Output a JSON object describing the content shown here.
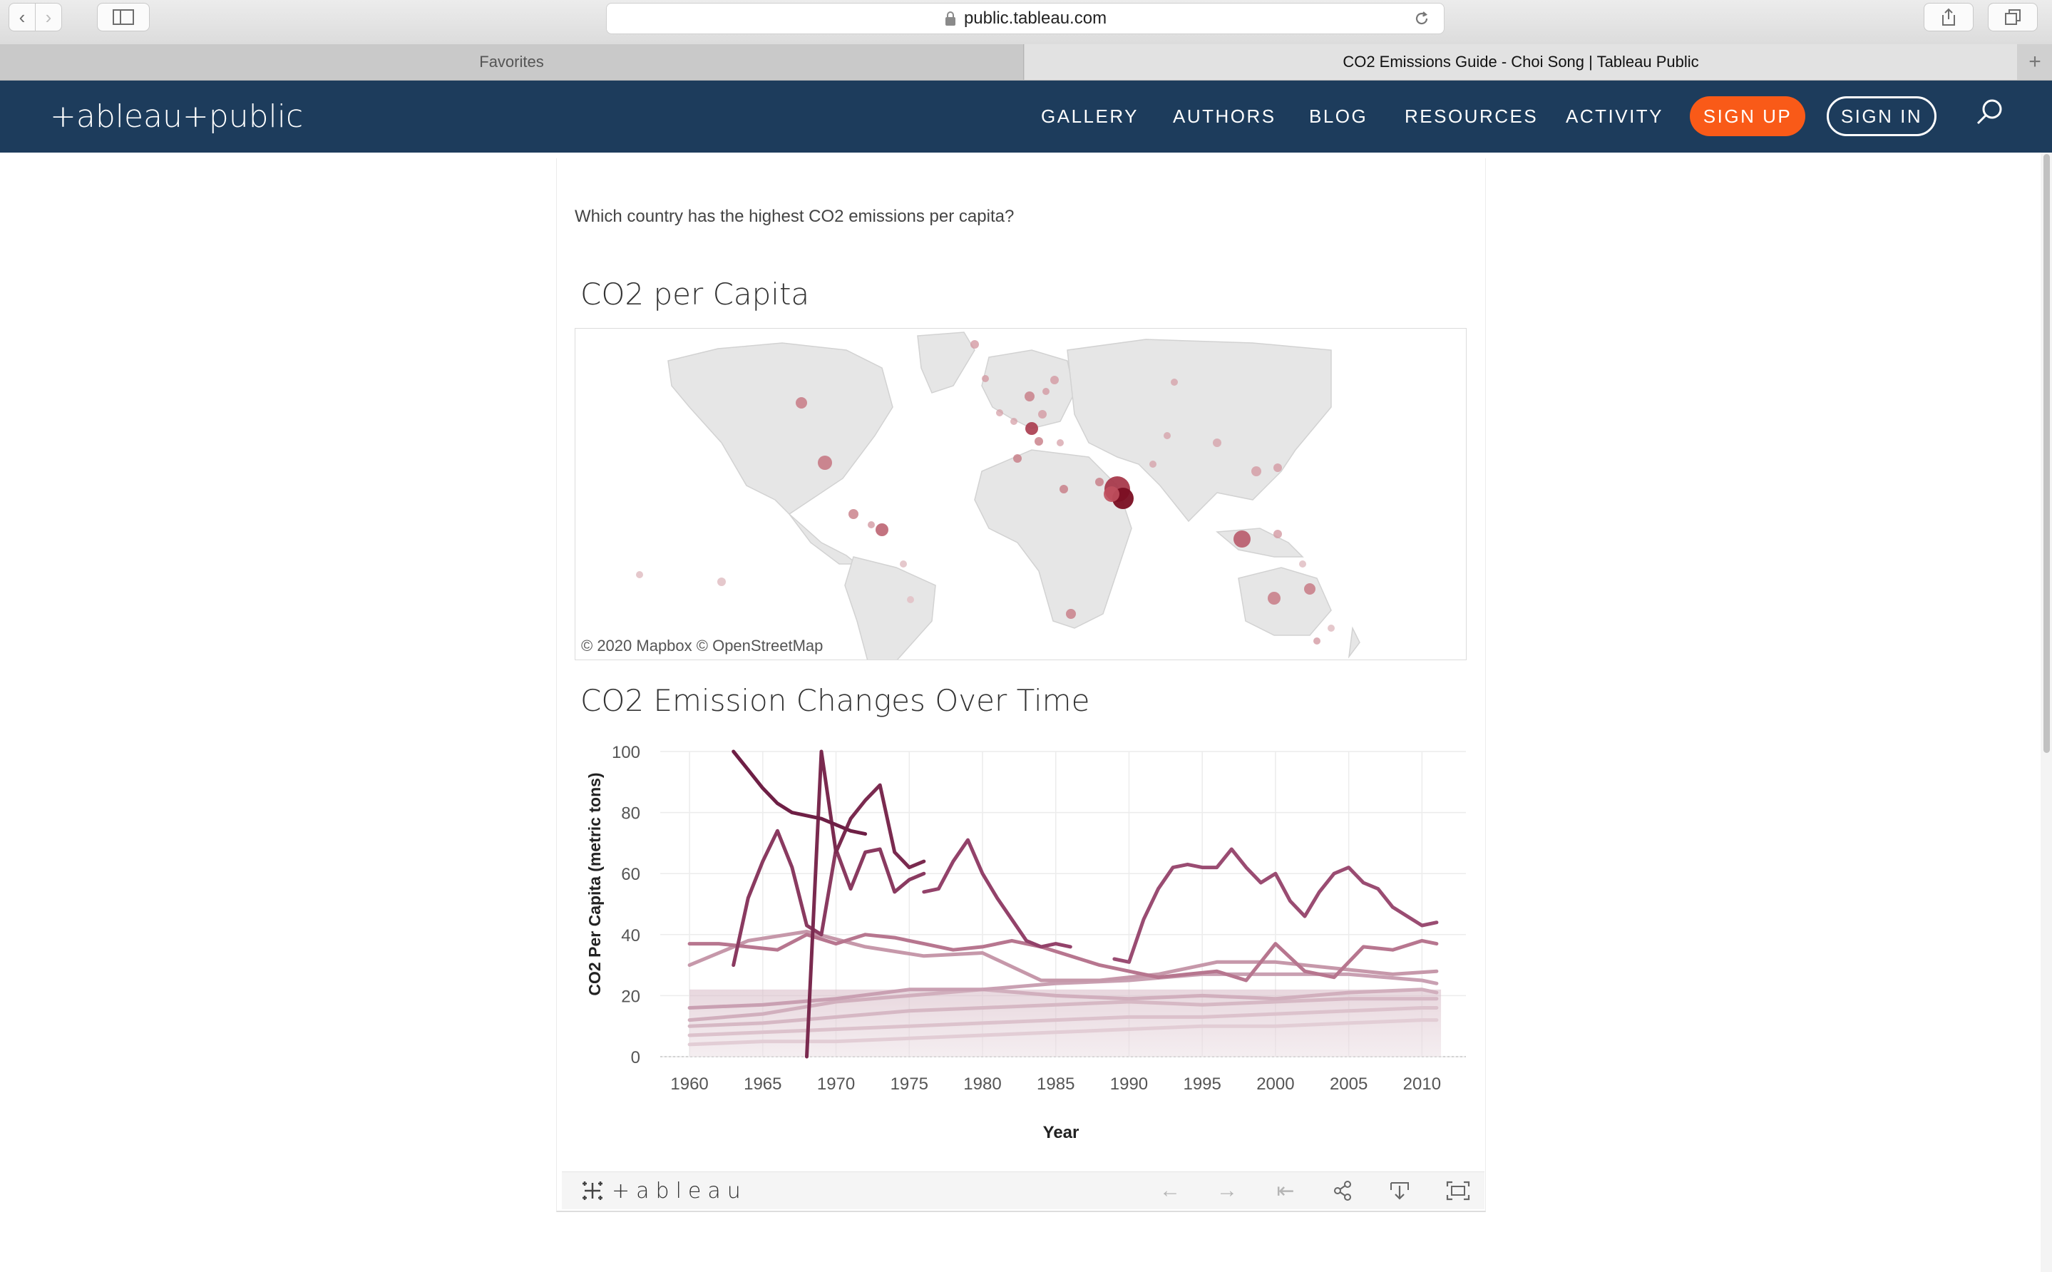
{
  "browser": {
    "url": "public.tableau.com",
    "tabs": [
      {
        "label": "Favorites"
      },
      {
        "label": "CO2 Emissions Guide - Choi Song | Tableau Public"
      }
    ]
  },
  "site": {
    "logo": "+ableau+public",
    "nav": [
      "GALLERY",
      "AUTHORS",
      "BLOG",
      "RESOURCES",
      "ACTIVITY"
    ],
    "signup": "SIGN UP",
    "signin": "SIGN IN",
    "colors": {
      "header_bg": "#1d3c5c",
      "signup_bg": "#f95a18"
    }
  },
  "story": {
    "question": "Which country has the highest CO2 emissions per capita?"
  },
  "map": {
    "title": "CO2 per Capita",
    "attribution": "© 2020 Mapbox  © OpenStreetMap"
  },
  "chart_data": {
    "type": "line",
    "title": "CO2 Emission Changes Over Time",
    "xlabel": "Year",
    "ylabel": "CO2 Per Capita (metric tons)",
    "xlim": [
      1958,
      2013
    ],
    "ylim": [
      0,
      100
    ],
    "xticks": [
      1960,
      1965,
      1970,
      1975,
      1980,
      1985,
      1990,
      1995,
      2000,
      2005,
      2010
    ],
    "yticks": [
      0,
      20,
      40,
      60,
      80,
      100
    ],
    "grid": true,
    "colors": [
      "#6e1f45",
      "#8a3a60",
      "#a3577a",
      "#b7768f",
      "#c698aa",
      "#d6b8c4"
    ],
    "series": [
      {
        "x": [
          1963,
          1964,
          1965,
          1966,
          1967,
          1968,
          1969,
          1970,
          1971,
          1972
        ],
        "values": [
          100,
          94,
          88,
          83,
          80,
          79,
          78,
          76,
          74,
          73
        ],
        "color": "#6e1f45"
      },
      {
        "x": [
          1968,
          1969,
          1970,
          1971,
          1972,
          1973,
          1974,
          1975,
          1976
        ],
        "values": [
          0,
          100,
          67,
          78,
          84,
          89,
          67,
          62,
          64
        ],
        "color": "#7a2a4f"
      },
      {
        "x": [
          1963,
          1964,
          1965,
          1966,
          1967,
          1968,
          1969,
          1970,
          1971,
          1972,
          1973,
          1974,
          1975,
          1976
        ],
        "values": [
          30,
          52,
          64,
          74,
          62,
          43,
          40,
          68,
          55,
          67,
          68,
          54,
          58,
          60
        ],
        "color": "#8a3a60"
      },
      {
        "x": [
          1976,
          1977,
          1978,
          1979,
          1980,
          1981,
          1982,
          1983,
          1984,
          1985,
          1986
        ],
        "values": [
          54,
          55,
          64,
          71,
          60,
          52,
          45,
          38,
          36,
          37,
          36
        ],
        "color": "#93426a"
      },
      {
        "x": [
          1989,
          1990,
          1991,
          1992,
          1993,
          1994,
          1995,
          1996,
          1997,
          1998,
          1999,
          2000,
          2001,
          2002,
          2003,
          2004,
          2005,
          2006,
          2007,
          2008,
          2009,
          2010,
          2011
        ],
        "values": [
          32,
          31,
          45,
          55,
          62,
          63,
          62,
          62,
          68,
          62,
          57,
          60,
          51,
          46,
          54,
          60,
          62,
          57,
          55,
          49,
          46,
          43,
          44
        ],
        "color": "#9a4c72"
      },
      {
        "x": [
          1960,
          1962,
          1964,
          1966,
          1968,
          1970,
          1972,
          1974,
          1976,
          1978,
          1980,
          1982,
          1984,
          1986,
          1988,
          1990,
          1992,
          1994,
          1996,
          1998,
          2000,
          2002,
          2004,
          2006,
          2008,
          2010,
          2011
        ],
        "values": [
          37,
          37,
          36,
          35,
          40,
          37,
          40,
          39,
          37,
          35,
          36,
          38,
          36,
          33,
          30,
          28,
          26,
          27,
          28,
          25,
          37,
          28,
          26,
          36,
          35,
          38,
          37
        ],
        "color": "#b7768f"
      },
      {
        "x": [
          1960,
          1964,
          1968,
          1972,
          1976,
          1980,
          1984,
          1988,
          1992,
          1996,
          2000,
          2004,
          2008,
          2011
        ],
        "values": [
          30,
          38,
          41,
          36,
          33,
          34,
          25,
          25,
          27,
          31,
          31,
          29,
          27,
          28
        ],
        "color": "#c698aa"
      },
      {
        "x": [
          1960,
          1965,
          1970,
          1975,
          1980,
          1985,
          1990,
          1995,
          2000,
          2005,
          2010,
          2011
        ],
        "values": [
          16,
          17,
          19,
          22,
          22,
          24,
          25,
          27,
          27,
          27,
          25,
          24
        ],
        "color": "#c9a0b2"
      },
      {
        "x": [
          1960,
          1965,
          1970,
          1975,
          1980,
          1985,
          1990,
          1995,
          2000,
          2005,
          2010,
          2011
        ],
        "values": [
          12,
          14,
          18,
          20,
          22,
          20,
          19,
          20,
          19,
          21,
          22,
          21
        ],
        "color": "#d1afbd"
      },
      {
        "x": [
          1960,
          1965,
          1970,
          1975,
          1980,
          1985,
          1990,
          1995,
          2000,
          2005,
          2010,
          2011
        ],
        "values": [
          10,
          11,
          13,
          15,
          16,
          17,
          18,
          17,
          18,
          19,
          19,
          19
        ],
        "color": "#d6b8c4"
      },
      {
        "x": [
          1960,
          1965,
          1970,
          1975,
          1980,
          1985,
          1990,
          1995,
          2000,
          2005,
          2010,
          2011
        ],
        "values": [
          7,
          8,
          9,
          10,
          11,
          12,
          13,
          13,
          14,
          15,
          16,
          16
        ],
        "color": "#dcc2cc"
      },
      {
        "x": [
          1960,
          1965,
          1970,
          1975,
          1980,
          1985,
          1990,
          1995,
          2000,
          2005,
          2010,
          2011
        ],
        "values": [
          4,
          5,
          5,
          6,
          7,
          8,
          9,
          10,
          10,
          11,
          12,
          12
        ],
        "color": "#e2cdd5"
      }
    ]
  },
  "footer": {
    "brand": "+ableau"
  }
}
